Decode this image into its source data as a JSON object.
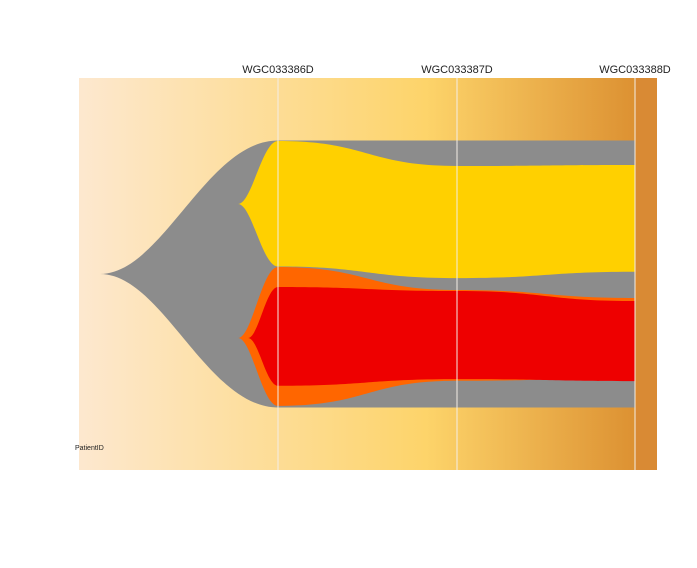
{
  "chart_data": {
    "type": "fishplot",
    "title": "",
    "timepoint_labels": [
      "WGC033386D",
      "WGC033387D",
      "WGC033388D"
    ],
    "corner_label": "PatientID",
    "background_gradient": [
      "#fde8cf",
      "#fdd46a",
      "#d98a2c"
    ],
    "clones": [
      {
        "id": "founder",
        "parent": null,
        "color": "#8c8c8c",
        "fractions": [
          100,
          100,
          100
        ]
      },
      {
        "id": "clone-yellow",
        "parent": "founder",
        "color": "#ffd000",
        "fractions": [
          47,
          42,
          40
        ]
      },
      {
        "id": "clone-orange",
        "parent": "founder",
        "color": "#ff6600",
        "fractions": [
          52,
          34,
          30
        ]
      },
      {
        "id": "clone-red",
        "parent": "clone-orange",
        "color": "#ee0000",
        "fractions": [
          37,
          33,
          30
        ]
      }
    ]
  }
}
